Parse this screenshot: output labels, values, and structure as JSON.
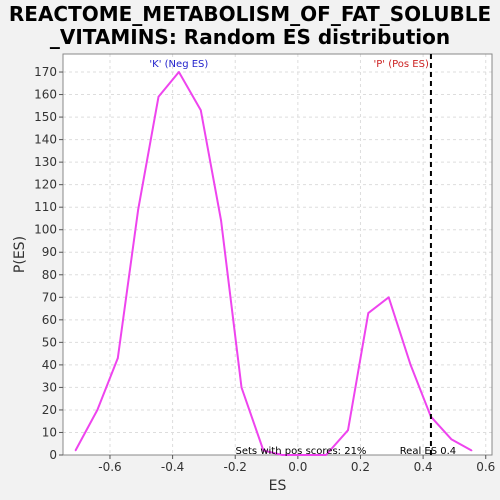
{
  "chart_data": {
    "type": "line",
    "title_lines": [
      "REACTOME_METABOLISM_OF_FAT_SOLUBLE",
      "_VITAMINS: Random ES distribution"
    ],
    "xlabel": "ES",
    "ylabel": "P(ES)",
    "xlim": [
      -0.75,
      0.62
    ],
    "ylim": [
      0,
      178
    ],
    "xticks": [
      -0.6,
      -0.4,
      -0.2,
      0.0,
      0.2,
      0.4,
      0.6
    ],
    "xtick_labels": [
      "-0.6",
      "-0.4",
      "-0.2",
      "0.0",
      "0.2",
      "0.4",
      "0.6"
    ],
    "yticks": [
      0,
      10,
      20,
      30,
      40,
      50,
      60,
      70,
      80,
      90,
      100,
      110,
      120,
      130,
      140,
      150,
      160,
      170
    ],
    "ytick_labels": [
      "0",
      "10",
      "20",
      "30",
      "40",
      "50",
      "60",
      "70",
      "80",
      "90",
      "100",
      "110",
      "120",
      "130",
      "140",
      "150",
      "160",
      "170"
    ],
    "grid": true,
    "series": [
      {
        "color": "#ee44ee",
        "x": [
          -0.71,
          -0.64,
          -0.575,
          -0.51,
          -0.445,
          -0.38,
          -0.31,
          -0.245,
          -0.18,
          -0.11,
          -0.05,
          0.02,
          0.09,
          0.16,
          0.225,
          0.29,
          0.36,
          0.425,
          0.49,
          0.555
        ],
        "y": [
          2,
          20,
          43,
          109,
          159,
          170,
          153,
          104,
          30,
          2,
          0,
          0,
          0,
          11,
          63,
          70,
          40,
          17,
          7,
          2
        ]
      }
    ],
    "real_es": 0.425,
    "annotations": {
      "neg_label": "'K' (Neg ES)",
      "pos_label": "'P' (Pos ES)",
      "pos_scores": "Sets with pos scores: 21%",
      "real_es_label": "Real ES 0.4"
    },
    "colors": {
      "neg_label": "#2222cc",
      "pos_label": "#cc2222",
      "plot_bg": "#ffffff",
      "page_bg": "#f2f2f2",
      "grid": "#dddddd"
    }
  }
}
